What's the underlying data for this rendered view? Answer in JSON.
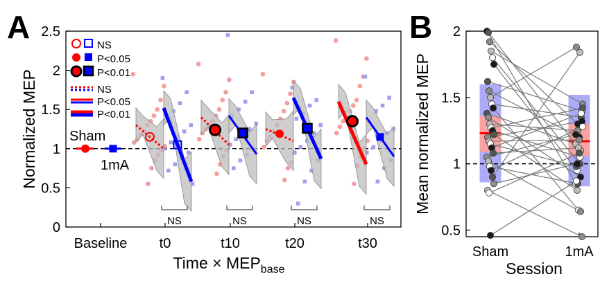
{
  "chart_data": [
    {
      "panel": "A",
      "type": "scatter",
      "xlabel": "Time × MEP",
      "xlabel_sub": "base",
      "ylabel": "Normalized MEP",
      "ylim": [
        0,
        2.5
      ],
      "yticks": [
        "0",
        "0.5",
        "1",
        "1.5",
        "2",
        "2.5"
      ],
      "reference_line": 1,
      "categories": [
        "Baseline",
        "t0",
        "t10",
        "t20",
        "t30"
      ],
      "colors": {
        "sham": "#ff0000",
        "active": "#0000ff",
        "sham_points": "#f4a0a0",
        "active_points": "#a0a0f0",
        "band": "#bebebe"
      },
      "series": [
        {
          "name": "Sham",
          "group": "sham",
          "means": [
            {
              "time": "Baseline",
              "value": 1.0,
              "significance": "P<0.05"
            },
            {
              "time": "t0",
              "value": 1.15,
              "significance": "NS"
            },
            {
              "time": "t10",
              "value": 1.24,
              "significance": "P<0.01"
            },
            {
              "time": "t20",
              "value": 1.19,
              "significance": "P<0.05"
            },
            {
              "time": "t30",
              "value": 1.35,
              "significance": "P<0.01"
            }
          ],
          "slopes": [
            {
              "time": "t0",
              "y_start": 1.3,
              "y_end": 1.0,
              "significance": "NS"
            },
            {
              "time": "t10",
              "y_start": 1.4,
              "y_end": 1.05,
              "significance": "NS"
            },
            {
              "time": "t20",
              "y_start": 1.25,
              "y_end": 1.1,
              "significance": "NS"
            },
            {
              "time": "t30",
              "y_start": 1.6,
              "y_end": 0.8,
              "significance": "P<0.01"
            }
          ]
        },
        {
          "name": "1mA",
          "group": "active",
          "means": [
            {
              "time": "Baseline",
              "value": 1.0,
              "significance": "P<0.05"
            },
            {
              "time": "t0",
              "value": 1.05,
              "significance": "NS"
            },
            {
              "time": "t10",
              "value": 1.2,
              "significance": "P<0.01"
            },
            {
              "time": "t20",
              "value": 1.26,
              "significance": "P<0.01"
            },
            {
              "time": "t30",
              "value": 1.15,
              "significance": "P<0.05"
            }
          ],
          "slopes": [
            {
              "time": "t0",
              "y_start": 1.52,
              "y_end": 0.58,
              "significance": "P<0.01"
            },
            {
              "time": "t10",
              "y_start": 1.42,
              "y_end": 0.93,
              "significance": "P<0.05"
            },
            {
              "time": "t20",
              "y_start": 1.65,
              "y_end": 0.87,
              "significance": "P<0.01"
            },
            {
              "time": "t30",
              "y_start": 1.4,
              "y_end": 0.9,
              "significance": "P<0.05"
            }
          ]
        }
      ],
      "scatter_points": {
        "sham": {
          "t0": [
            1.95,
            1.8,
            1.62,
            1.5,
            1.42,
            1.35,
            1.3,
            1.22,
            1.18,
            1.12,
            1.08,
            1.03,
            0.98,
            0.92,
            0.85,
            0.75,
            0.55
          ],
          "t10": [
            2.08,
            1.88,
            1.72,
            1.62,
            1.5,
            1.42,
            1.35,
            1.3,
            1.25,
            1.2,
            1.12,
            1.05,
            0.98,
            0.9,
            0.8,
            0.68
          ],
          "t20": [
            1.95,
            1.85,
            1.7,
            1.58,
            1.48,
            1.38,
            1.3,
            1.22,
            1.15,
            1.1,
            1.02,
            0.95,
            0.82,
            0.75,
            0.6
          ],
          "t30": [
            2.38,
            2.15,
            1.92,
            1.8,
            1.62,
            1.55,
            1.48,
            1.4,
            1.35,
            1.28,
            1.2,
            1.1,
            1.0,
            0.9,
            0.78,
            0.55
          ]
        },
        "active": {
          "t0": [
            1.9,
            1.72,
            1.58,
            1.48,
            1.38,
            1.3,
            1.22,
            1.15,
            1.08,
            1.0,
            0.95,
            0.88,
            0.8,
            0.72,
            0.55
          ],
          "t10": [
            2.45,
            1.72,
            1.6,
            1.5,
            1.42,
            1.32,
            1.25,
            1.18,
            1.12,
            1.05,
            1.0,
            0.92,
            0.85,
            0.75
          ],
          "t20": [
            1.78,
            1.62,
            1.55,
            1.45,
            1.38,
            1.3,
            1.2,
            1.1,
            1.02,
            0.95,
            0.85,
            0.72,
            0.58,
            0.3
          ],
          "t30": [
            1.92,
            1.65,
            1.55,
            1.48,
            1.35,
            1.25,
            1.2,
            1.1,
            1.02,
            0.95,
            0.85,
            0.75,
            0.58
          ]
        }
      },
      "brackets": [
        {
          "time": "t0",
          "label": "NS"
        },
        {
          "time": "t10",
          "label": "NS"
        },
        {
          "time": "t20",
          "label": "NS"
        },
        {
          "time": "t30",
          "label": "NS"
        }
      ],
      "legend": {
        "placement": "top-left",
        "marker_entries": [
          "NS",
          "P<0.05",
          "P<0.01"
        ],
        "line_entries": [
          "NS",
          "P<0.05",
          "P<0.01"
        ]
      },
      "annotations": {
        "sham_label": "Sham",
        "active_label": "1mA"
      }
    },
    {
      "panel": "B",
      "type": "scatter",
      "xlabel": "Session",
      "ylabel": "Mean normalized MEP",
      "ylim": [
        0.45,
        2.0
      ],
      "yticks": [
        "0.5",
        "1",
        "1.5",
        "2"
      ],
      "reference_line": 1,
      "categories": [
        "Sham",
        "1mA"
      ],
      "box": {
        "Sham": {
          "mean": 1.23,
          "sem_band": [
            1.09,
            1.36
          ],
          "sd_band": [
            0.86,
            1.6
          ]
        },
        "1mA": {
          "mean": 1.17,
          "sem_band": [
            1.06,
            1.3
          ],
          "sd_band": [
            0.83,
            1.52
          ]
        }
      },
      "pairs": [
        [
          2.0,
          0.85
        ],
        [
          1.99,
          1.1
        ],
        [
          1.92,
          1.3
        ],
        [
          1.85,
          1.45
        ],
        [
          1.8,
          1.0
        ],
        [
          1.75,
          0.95
        ],
        [
          1.62,
          1.4
        ],
        [
          1.55,
          1.2
        ],
        [
          1.5,
          1.88
        ],
        [
          1.45,
          1.35
        ],
        [
          1.42,
          0.65
        ],
        [
          1.38,
          1.15
        ],
        [
          1.35,
          0.9
        ],
        [
          1.3,
          1.25
        ],
        [
          1.27,
          1.42
        ],
        [
          1.25,
          1.05
        ],
        [
          1.22,
          0.8
        ],
        [
          1.2,
          1.32
        ],
        [
          1.17,
          1.18
        ],
        [
          1.15,
          0.98
        ],
        [
          1.12,
          1.38
        ],
        [
          1.08,
          1.12
        ],
        [
          1.05,
          1.22
        ],
        [
          1.02,
          0.64
        ],
        [
          0.98,
          0.85
        ],
        [
          0.95,
          1.28
        ],
        [
          0.9,
          1.84
        ],
        [
          0.85,
          1.0
        ],
        [
          0.8,
          0.45
        ],
        [
          0.78,
          1.08
        ],
        [
          0.46,
          0.87
        ]
      ]
    }
  ],
  "panel_labels": {
    "a": "A",
    "b": "B"
  }
}
